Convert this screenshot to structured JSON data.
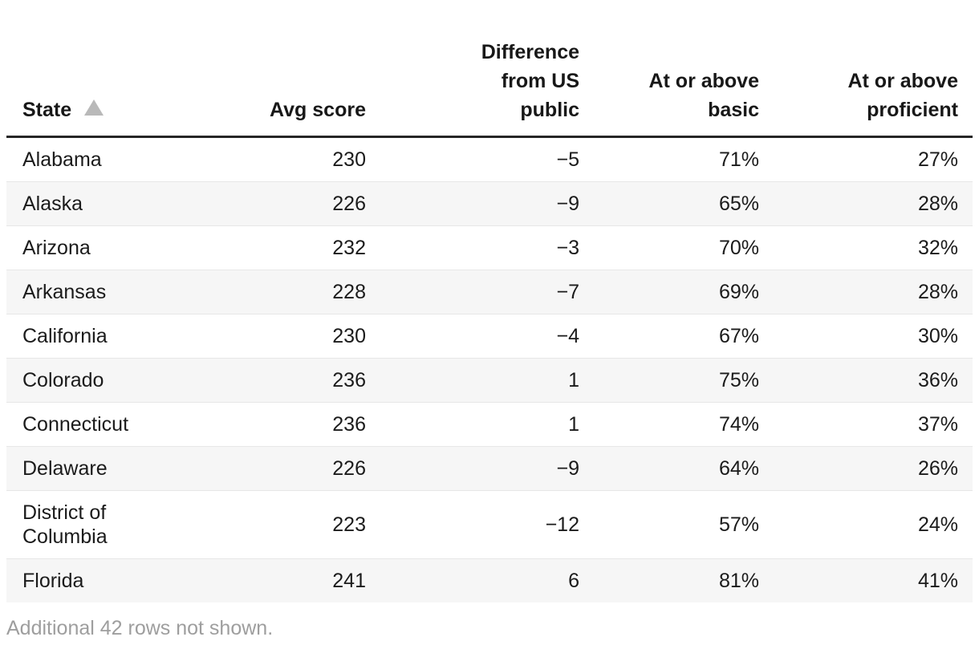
{
  "chart_data": {
    "type": "table",
    "columns": [
      "State",
      "Avg score",
      "Difference from US public",
      "At or above basic",
      "At or above proficient"
    ],
    "rows": [
      [
        "Alabama",
        "230",
        "−5",
        "71%",
        "27%"
      ],
      [
        "Alaska",
        "226",
        "−9",
        "65%",
        "28%"
      ],
      [
        "Arizona",
        "232",
        "−3",
        "70%",
        "32%"
      ],
      [
        "Arkansas",
        "228",
        "−7",
        "69%",
        "28%"
      ],
      [
        "California",
        "230",
        "−4",
        "67%",
        "30%"
      ],
      [
        "Colorado",
        "236",
        "1",
        "75%",
        "36%"
      ],
      [
        "Connecticut",
        "236",
        "1",
        "74%",
        "37%"
      ],
      [
        "Delaware",
        "226",
        "−9",
        "64%",
        "26%"
      ],
      [
        "District of Columbia",
        "223",
        "−12",
        "57%",
        "24%"
      ],
      [
        "Florida",
        "241",
        "6",
        "81%",
        "41%"
      ]
    ],
    "sort": {
      "column": "State",
      "direction": "ascending",
      "icon": "triangle-up"
    },
    "footer_note": "Additional 42 rows not shown.",
    "layout_hints": {
      "striped_rows": "even",
      "number_alignment": "right",
      "state_alignment": "left"
    }
  },
  "colors": {
    "header_rule": "#262626",
    "row_stripe": "#f6f6f6",
    "row_divider": "#e7e7e7",
    "text": "#1b1b1b",
    "muted_text": "#9e9e9e",
    "sort_arrow": "#b9b9b9"
  }
}
